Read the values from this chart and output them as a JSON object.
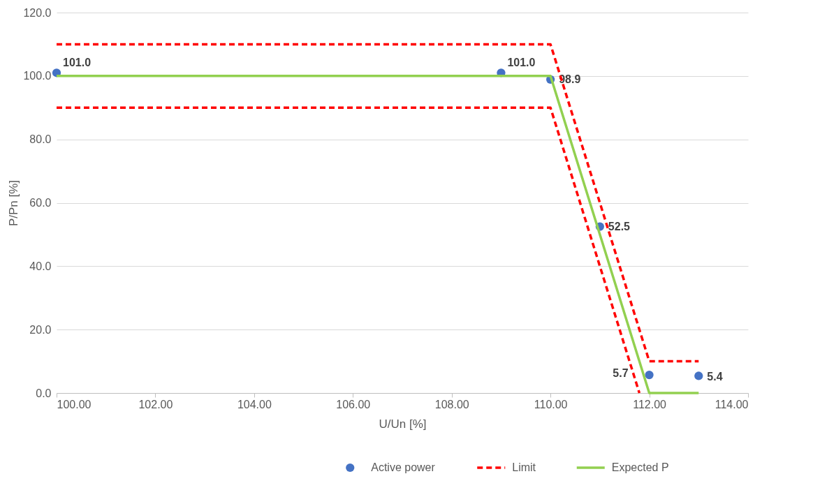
{
  "chart_data": {
    "type": "scatter",
    "xlabel": "U/Un [%]",
    "ylabel": "P/Pn [%]",
    "xlim": [
      100,
      114
    ],
    "xticks": [
      {
        "value": 100,
        "label": "100.00"
      },
      {
        "value": 102,
        "label": "102.00"
      },
      {
        "value": 104,
        "label": "104.00"
      },
      {
        "value": 106,
        "label": "106.00"
      },
      {
        "value": 108,
        "label": "108.00"
      },
      {
        "value": 110,
        "label": "110.00"
      },
      {
        "value": 112,
        "label": "112.00"
      },
      {
        "value": 114,
        "label": "114.00"
      }
    ],
    "ylim": [
      0,
      120
    ],
    "yticks": [
      {
        "value": 0,
        "label": "0.0"
      },
      {
        "value": 20,
        "label": "20.0"
      },
      {
        "value": 40,
        "label": "40.0"
      },
      {
        "value": 60,
        "label": "60.0"
      },
      {
        "value": 80,
        "label": "80.0"
      },
      {
        "value": 100,
        "label": "100.0"
      },
      {
        "value": 120,
        "label": "120.0"
      }
    ],
    "grid": "y",
    "legend": "bottom",
    "series": [
      {
        "name": "Active power",
        "marker": "circle",
        "color": "#4472c4",
        "x": [
          100,
          109,
          110,
          111,
          112,
          113
        ],
        "values": [
          101.0,
          101.0,
          98.9,
          52.5,
          5.7,
          5.4
        ],
        "value_labels": [
          "101.0",
          "101.0",
          "98.9",
          "52.5",
          "5.7",
          "5.4"
        ]
      },
      {
        "name": "Limit",
        "type": "line",
        "line_style": "dashed",
        "color": "#ff0000",
        "x": [
          100,
          110,
          112,
          113,
          null,
          100,
          110,
          111.8
        ],
        "values": [
          110,
          110,
          10,
          10,
          null,
          90,
          90,
          0
        ]
      },
      {
        "name": "Expected P",
        "type": "line",
        "line_style": "solid",
        "color": "#92d050",
        "x": [
          100,
          110,
          112,
          113
        ],
        "values": [
          100,
          100,
          0,
          0
        ]
      }
    ]
  }
}
